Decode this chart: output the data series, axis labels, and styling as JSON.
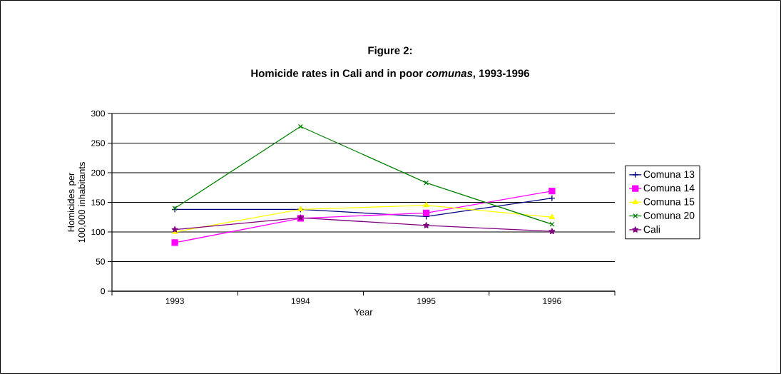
{
  "chart_data": {
    "type": "line",
    "title": "Figure 2:",
    "subtitle": "Homicide rates in Cali and in poor *comunas*, 1993-1996",
    "xlabel": "Year",
    "ylabel": "Homicides per 100,000 inhabitants",
    "categories": [
      "1993",
      "1994",
      "1995",
      "1996"
    ],
    "series": [
      {
        "name": "Comuna 13",
        "color": "#000080",
        "marker": "cross",
        "values": [
          138,
          138,
          126,
          157
        ]
      },
      {
        "name": "Comuna 14",
        "color": "#ff00ff",
        "marker": "square",
        "values": [
          82,
          123,
          132,
          169
        ]
      },
      {
        "name": "Comuna 15",
        "color": "#ffff00",
        "marker": "triangle",
        "values": [
          100,
          138,
          145,
          125
        ]
      },
      {
        "name": "Comuna 20",
        "color": "#008000",
        "marker": "x",
        "values": [
          140,
          278,
          183,
          113
        ]
      },
      {
        "name": "Cali",
        "color": "#800080",
        "marker": "star",
        "values": [
          104,
          124,
          111,
          101
        ]
      }
    ],
    "ylim": [
      0,
      300
    ],
    "yticks": [
      0,
      50,
      100,
      150,
      200,
      250,
      300
    ],
    "grid": "y",
    "legend": "right",
    "line_style": "solid"
  }
}
